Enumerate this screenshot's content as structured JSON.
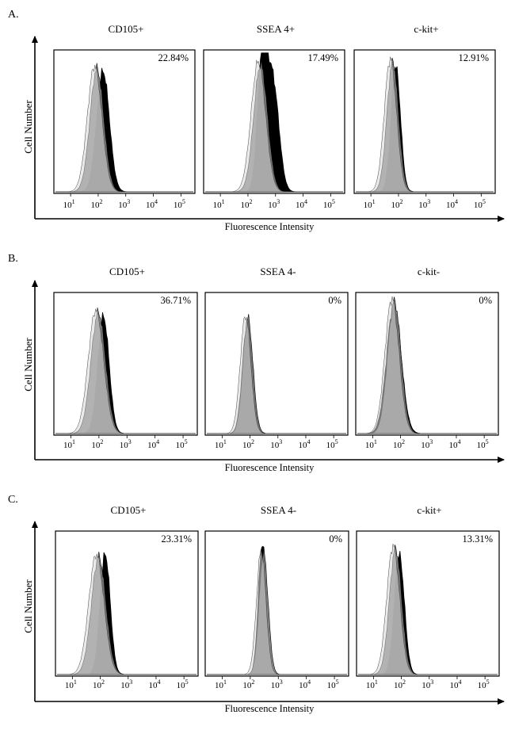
{
  "chart_data": [
    {
      "type": "histogram",
      "panel_label": "A.",
      "ylabel": "Cell Number",
      "xlabel": "Fluorescence Intensity",
      "x_scale": "log",
      "x_ticks": [
        {
          "base": "10",
          "exp": "1"
        },
        {
          "base": "10",
          "exp": "2"
        },
        {
          "base": "10",
          "exp": "3"
        },
        {
          "base": "10",
          "exp": "4"
        },
        {
          "base": "10",
          "exp": "5"
        }
      ],
      "plots": [
        {
          "title": "CD105+",
          "percent": "22.84%",
          "series": [
            {
              "role": "stained",
              "fill": "#000000",
              "peaks": [
                {
                  "center": 150,
                  "amp": 0.86,
                  "spread": 0.23
                }
              ]
            },
            {
              "role": "control",
              "fill": "#7a7a7a",
              "peaks": [
                {
                  "center": 90,
                  "amp": 0.88,
                  "spread": 0.25
                }
              ]
            }
          ]
        },
        {
          "title": "SSEA 4+",
          "percent": "17.49%",
          "series": [
            {
              "role": "stained",
              "fill": "#000000",
              "peaks": [
                {
                  "center": 330,
                  "amp": 0.94,
                  "spread": 0.17
                },
                {
                  "center": 800,
                  "amp": 0.78,
                  "spread": 0.22
                }
              ]
            },
            {
              "role": "control",
              "fill": "#7a7a7a",
              "peaks": [
                {
                  "center": 290,
                  "amp": 0.91,
                  "spread": 0.25
                }
              ]
            }
          ]
        },
        {
          "title": "c-kit+",
          "percent": "12.91%",
          "series": [
            {
              "role": "stained",
              "fill": "#000000",
              "peaks": [
                {
                  "center": 80,
                  "amp": 0.89,
                  "spread": 0.17
                }
              ]
            },
            {
              "role": "control",
              "fill": "#7a7a7a",
              "peaks": [
                {
                  "center": 62,
                  "amp": 0.93,
                  "spread": 0.21
                }
              ]
            }
          ]
        }
      ]
    },
    {
      "type": "histogram",
      "panel_label": "B.",
      "ylabel": "Cell Number",
      "xlabel": "Fluorescence Intensity",
      "x_scale": "log",
      "x_ticks": [
        {
          "base": "10",
          "exp": "1"
        },
        {
          "base": "10",
          "exp": "2"
        },
        {
          "base": "10",
          "exp": "3"
        },
        {
          "base": "10",
          "exp": "4"
        },
        {
          "base": "10",
          "exp": "5"
        }
      ],
      "plots": [
        {
          "title": "CD105+",
          "percent": "36.71%",
          "series": [
            {
              "role": "stained",
              "fill": "#000000",
              "peaks": [
                {
                  "center": 145,
                  "amp": 0.84,
                  "spread": 0.2
                }
              ]
            },
            {
              "role": "control",
              "fill": "#7a7a7a",
              "peaks": [
                {
                  "center": 95,
                  "amp": 0.87,
                  "spread": 0.26
                }
              ]
            }
          ]
        },
        {
          "title": "SSEA 4-",
          "percent": "0%",
          "series": [
            {
              "role": "stained",
              "fill": "#000000",
              "peaks": [
                {
                  "center": 82,
                  "amp": 0.81,
                  "spread": 0.18
                }
              ]
            },
            {
              "role": "control",
              "fill": "#7a7a7a",
              "peaks": [
                {
                  "center": 84,
                  "amp": 0.83,
                  "spread": 0.18
                }
              ]
            }
          ]
        },
        {
          "title": "c-kit-",
          "percent": "0%",
          "series": [
            {
              "role": "stained",
              "fill": "#000000",
              "peaks": [
                {
                  "center": 58,
                  "amp": 0.93,
                  "spread": 0.26
                }
              ]
            },
            {
              "role": "control",
              "fill": "#7a7a7a",
              "peaks": [
                {
                  "center": 60,
                  "amp": 0.95,
                  "spread": 0.24
                }
              ]
            }
          ]
        }
      ]
    },
    {
      "type": "histogram",
      "panel_label": "C.",
      "ylabel": "Cell Number",
      "xlabel": "Fluorescence Intensity",
      "x_scale": "log",
      "x_ticks": [
        {
          "base": "10",
          "exp": "1"
        },
        {
          "base": "10",
          "exp": "2"
        },
        {
          "base": "10",
          "exp": "3"
        },
        {
          "base": "10",
          "exp": "4"
        },
        {
          "base": "10",
          "exp": "5"
        }
      ],
      "plots": [
        {
          "title": "CD105+",
          "percent": "23.31%",
          "series": [
            {
              "role": "stained",
              "fill": "#000000",
              "peaks": [
                {
                  "center": 150,
                  "amp": 0.85,
                  "spread": 0.18
                }
              ]
            },
            {
              "role": "control",
              "fill": "#7a7a7a",
              "peaks": [
                {
                  "center": 88,
                  "amp": 0.83,
                  "spread": 0.26
                }
              ]
            }
          ]
        },
        {
          "title": "SSEA 4-",
          "percent": "0%",
          "series": [
            {
              "role": "stained",
              "fill": "#000000",
              "peaks": [
                {
                  "center": 270,
                  "amp": 0.93,
                  "spread": 0.14
                }
              ]
            },
            {
              "role": "control",
              "fill": "#7a7a7a",
              "peaks": [
                {
                  "center": 300,
                  "amp": 0.86,
                  "spread": 0.16
                }
              ]
            }
          ]
        },
        {
          "title": "c-kit+",
          "percent": "13.31%",
          "series": [
            {
              "role": "stained",
              "fill": "#000000",
              "peaks": [
                {
                  "center": 85,
                  "amp": 0.84,
                  "spread": 0.18
                }
              ]
            },
            {
              "role": "control",
              "fill": "#7a7a7a",
              "peaks": [
                {
                  "center": 62,
                  "amp": 0.89,
                  "spread": 0.22
                }
              ]
            }
          ]
        }
      ]
    }
  ]
}
